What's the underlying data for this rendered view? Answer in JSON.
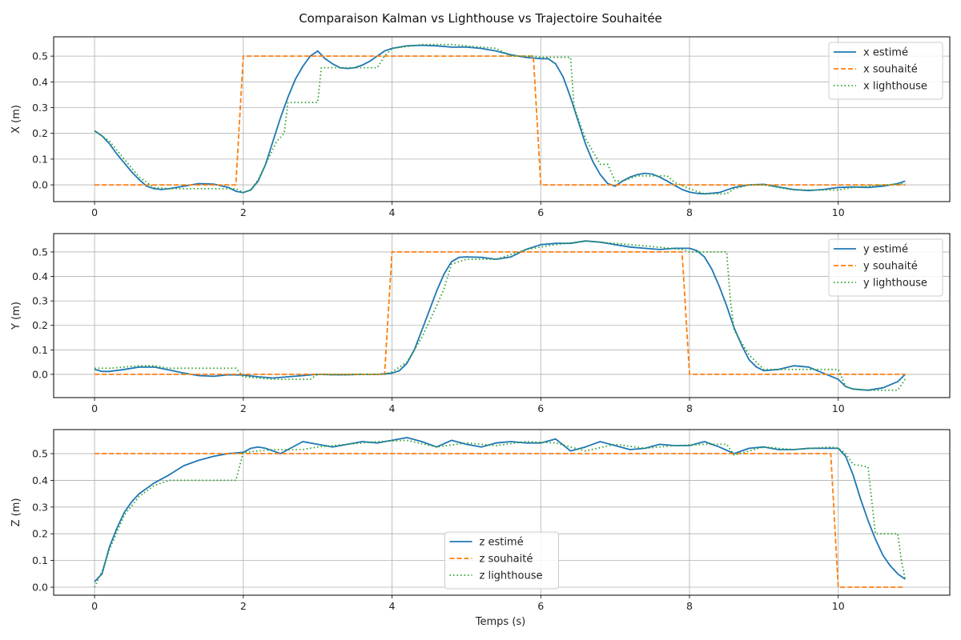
{
  "figure": {
    "title": "Comparaison Kalman vs Lighthouse vs Trajectoire Souhaitée",
    "xlabel": "Temps (s)"
  },
  "colors": {
    "estimated": "#1f77b4",
    "desired": "#ff7f0e",
    "lighthouse": "#2ca02c"
  },
  "chart_data": [
    {
      "type": "line",
      "ylabel": "X (m)",
      "xlim": [
        -0.55,
        11.5
      ],
      "ylim": [
        -0.065,
        0.575
      ],
      "xticks": [
        0,
        2,
        4,
        6,
        8,
        10
      ],
      "yticks": [
        0.0,
        0.1,
        0.2,
        0.3,
        0.4,
        0.5
      ],
      "grid": true,
      "legend_position": "top-right",
      "series": [
        {
          "name": "x estimé",
          "style": "solid",
          "x": [
            0,
            0.1,
            0.2,
            0.3,
            0.4,
            0.5,
            0.6,
            0.7,
            0.8,
            0.9,
            1.0,
            1.2,
            1.4,
            1.6,
            1.8,
            1.9,
            2.0,
            2.1,
            2.2,
            2.3,
            2.4,
            2.5,
            2.6,
            2.7,
            2.8,
            2.9,
            3.0,
            3.1,
            3.2,
            3.3,
            3.4,
            3.5,
            3.6,
            3.7,
            3.8,
            3.9,
            4.0,
            4.2,
            4.4,
            4.6,
            4.8,
            5.0,
            5.2,
            5.4,
            5.6,
            5.8,
            6.0,
            6.1,
            6.2,
            6.3,
            6.4,
            6.5,
            6.6,
            6.7,
            6.8,
            6.9,
            7.0,
            7.1,
            7.2,
            7.3,
            7.4,
            7.5,
            7.6,
            7.7,
            7.8,
            7.9,
            8.0,
            8.1,
            8.2,
            8.4,
            8.6,
            8.8,
            9.0,
            9.2,
            9.4,
            9.6,
            9.8,
            10.0,
            10.2,
            10.4,
            10.6,
            10.8,
            10.9
          ],
          "y": [
            0.21,
            0.19,
            0.16,
            0.12,
            0.085,
            0.05,
            0.02,
            -0.005,
            -0.015,
            -0.018,
            -0.015,
            -0.005,
            0.005,
            0.003,
            -0.01,
            -0.025,
            -0.03,
            -0.02,
            0.015,
            0.08,
            0.17,
            0.26,
            0.34,
            0.41,
            0.46,
            0.5,
            0.52,
            0.49,
            0.47,
            0.455,
            0.452,
            0.455,
            0.465,
            0.48,
            0.5,
            0.52,
            0.53,
            0.54,
            0.542,
            0.54,
            0.535,
            0.535,
            0.53,
            0.52,
            0.505,
            0.495,
            0.49,
            0.49,
            0.47,
            0.42,
            0.34,
            0.25,
            0.16,
            0.09,
            0.04,
            0.005,
            -0.005,
            0.015,
            0.03,
            0.04,
            0.045,
            0.042,
            0.03,
            0.015,
            -0.002,
            -0.018,
            -0.028,
            -0.033,
            -0.035,
            -0.03,
            -0.01,
            0.0,
            0.002,
            -0.008,
            -0.018,
            -0.022,
            -0.018,
            -0.01,
            -0.008,
            -0.01,
            -0.005,
            0.005,
            0.015
          ]
        },
        {
          "name": "x souhaité",
          "style": "dashed",
          "x": [
            0,
            1.9,
            2.0,
            5.9,
            6.0,
            10.9
          ],
          "y": [
            0,
            0,
            0.5,
            0.5,
            0,
            0
          ]
        },
        {
          "name": "x lighthouse",
          "style": "dotted",
          "x": [
            0,
            0.2,
            0.4,
            0.6,
            0.8,
            1.0,
            1.9,
            2.0,
            2.1,
            2.2,
            2.3,
            2.45,
            2.55,
            2.6,
            3.0,
            3.05,
            3.5,
            3.8,
            3.9,
            4.0,
            4.4,
            4.8,
            5.4,
            5.6,
            5.9,
            6.0,
            6.4,
            6.45,
            6.6,
            6.8,
            6.9,
            7.0,
            7.1,
            7.3,
            7.5,
            7.7,
            7.8,
            8.0,
            8.2,
            8.5,
            8.6,
            8.8,
            9.0,
            9.2,
            9.4,
            10.0,
            10.2,
            10.4,
            10.9
          ],
          "y": [
            0.21,
            0.17,
            0.1,
            0.03,
            -0.01,
            -0.015,
            -0.015,
            -0.03,
            -0.02,
            0.02,
            0.08,
            0.17,
            0.2,
            0.32,
            0.32,
            0.455,
            0.455,
            0.455,
            0.5,
            0.53,
            0.545,
            0.545,
            0.53,
            0.5,
            0.5,
            0.495,
            0.495,
            0.3,
            0.18,
            0.08,
            0.08,
            0.015,
            0.015,
            0.035,
            0.035,
            0.035,
            0.01,
            -0.015,
            -0.035,
            -0.035,
            -0.015,
            0.0,
            0.0,
            -0.01,
            -0.02,
            -0.02,
            -0.01,
            -0.005,
            0.005
          ]
        }
      ]
    },
    {
      "type": "line",
      "ylabel": "Y (m)",
      "xlim": [
        -0.55,
        11.5
      ],
      "ylim": [
        -0.095,
        0.575
      ],
      "xticks": [
        0,
        2,
        4,
        6,
        8,
        10
      ],
      "yticks": [
        0.0,
        0.1,
        0.2,
        0.3,
        0.4,
        0.5
      ],
      "grid": true,
      "legend_position": "top-right",
      "series": [
        {
          "name": "y estimé",
          "style": "solid",
          "x": [
            0,
            0.1,
            0.2,
            0.4,
            0.6,
            0.8,
            1.0,
            1.2,
            1.4,
            1.6,
            1.8,
            2.0,
            2.2,
            2.4,
            2.6,
            2.8,
            3.0,
            3.2,
            3.4,
            3.6,
            3.8,
            3.9,
            4.0,
            4.1,
            4.2,
            4.3,
            4.4,
            4.5,
            4.6,
            4.7,
            4.8,
            4.9,
            5.0,
            5.2,
            5.4,
            5.6,
            5.8,
            6.0,
            6.2,
            6.4,
            6.6,
            6.8,
            7.0,
            7.2,
            7.4,
            7.6,
            7.8,
            8.0,
            8.1,
            8.2,
            8.3,
            8.4,
            8.5,
            8.6,
            8.7,
            8.8,
            8.9,
            9.0,
            9.2,
            9.4,
            9.6,
            9.8,
            10.0,
            10.1,
            10.2,
            10.4,
            10.6,
            10.8,
            10.9
          ],
          "y": [
            0.02,
            0.012,
            0.012,
            0.02,
            0.03,
            0.03,
            0.018,
            0.005,
            -0.005,
            -0.008,
            -0.002,
            -0.003,
            -0.01,
            -0.015,
            -0.01,
            -0.005,
            0.0,
            -0.002,
            -0.002,
            0.0,
            0.0,
            0.002,
            0.005,
            0.015,
            0.045,
            0.1,
            0.18,
            0.26,
            0.34,
            0.41,
            0.46,
            0.478,
            0.48,
            0.478,
            0.47,
            0.48,
            0.51,
            0.53,
            0.535,
            0.535,
            0.545,
            0.54,
            0.53,
            0.52,
            0.515,
            0.51,
            0.515,
            0.515,
            0.505,
            0.48,
            0.43,
            0.36,
            0.28,
            0.19,
            0.12,
            0.06,
            0.03,
            0.015,
            0.02,
            0.035,
            0.03,
            0.005,
            -0.02,
            -0.05,
            -0.06,
            -0.065,
            -0.055,
            -0.03,
            0.0
          ]
        },
        {
          "name": "y souhaité",
          "style": "dashed",
          "x": [
            0,
            3.9,
            4.0,
            7.9,
            8.0,
            10.9
          ],
          "y": [
            0,
            0,
            0.5,
            0.5,
            0,
            0
          ]
        },
        {
          "name": "y lighthouse",
          "style": "dotted",
          "x": [
            0,
            0.2,
            0.4,
            0.6,
            0.8,
            1.0,
            1.9,
            2.0,
            2.2,
            2.4,
            2.9,
            3.0,
            3.9,
            4.0,
            4.2,
            4.4,
            4.6,
            4.7,
            4.8,
            5.0,
            5.4,
            5.8,
            6.2,
            6.6,
            7.4,
            7.9,
            8.0,
            8.1,
            8.5,
            8.55,
            8.6,
            8.8,
            9.0,
            9.4,
            10.0,
            10.1,
            10.2,
            10.4,
            10.8,
            10.9
          ],
          "y": [
            0.025,
            0.025,
            0.03,
            0.035,
            0.035,
            0.025,
            0.025,
            -0.01,
            -0.015,
            -0.02,
            -0.02,
            0.0,
            0.0,
            0.01,
            0.05,
            0.15,
            0.28,
            0.35,
            0.45,
            0.47,
            0.47,
            0.51,
            0.53,
            0.545,
            0.525,
            0.51,
            0.5,
            0.5,
            0.5,
            0.3,
            0.18,
            0.08,
            0.02,
            0.02,
            0.02,
            -0.05,
            -0.06,
            -0.065,
            -0.065,
            -0.02
          ]
        }
      ]
    },
    {
      "type": "line",
      "ylabel": "Z (m)",
      "xlim": [
        -0.55,
        11.5
      ],
      "ylim": [
        -0.03,
        0.59
      ],
      "xticks": [
        0,
        2,
        4,
        6,
        8,
        10
      ],
      "yticks": [
        0.0,
        0.1,
        0.2,
        0.3,
        0.4,
        0.5
      ],
      "grid": true,
      "legend_position": "lower-center",
      "series": [
        {
          "name": "z estimé",
          "style": "solid",
          "x": [
            0,
            0.1,
            0.2,
            0.3,
            0.4,
            0.5,
            0.6,
            0.8,
            1.0,
            1.2,
            1.4,
            1.6,
            1.8,
            2.0,
            2.1,
            2.2,
            2.3,
            2.4,
            2.5,
            2.6,
            2.8,
            3.0,
            3.2,
            3.4,
            3.6,
            3.8,
            4.0,
            4.2,
            4.4,
            4.6,
            4.8,
            5.0,
            5.2,
            5.4,
            5.6,
            5.8,
            6.0,
            6.2,
            6.4,
            6.6,
            6.8,
            7.0,
            7.2,
            7.4,
            7.6,
            7.8,
            8.0,
            8.2,
            8.4,
            8.6,
            8.8,
            9.0,
            9.2,
            9.4,
            9.6,
            9.8,
            10.0,
            10.1,
            10.2,
            10.3,
            10.4,
            10.5,
            10.6,
            10.7,
            10.8,
            10.9
          ],
          "y": [
            0.02,
            0.05,
            0.15,
            0.22,
            0.28,
            0.32,
            0.35,
            0.39,
            0.42,
            0.455,
            0.475,
            0.49,
            0.5,
            0.505,
            0.52,
            0.525,
            0.52,
            0.51,
            0.5,
            0.515,
            0.545,
            0.535,
            0.525,
            0.535,
            0.545,
            0.54,
            0.55,
            0.56,
            0.545,
            0.525,
            0.55,
            0.535,
            0.525,
            0.54,
            0.545,
            0.54,
            0.54,
            0.555,
            0.51,
            0.525,
            0.545,
            0.53,
            0.515,
            0.52,
            0.535,
            0.53,
            0.53,
            0.545,
            0.525,
            0.5,
            0.52,
            0.525,
            0.515,
            0.515,
            0.52,
            0.52,
            0.52,
            0.49,
            0.42,
            0.33,
            0.25,
            0.18,
            0.12,
            0.08,
            0.05,
            0.03
          ]
        },
        {
          "name": "z souhaité",
          "style": "dashed",
          "x": [
            0,
            9.9,
            10.0,
            10.9
          ],
          "y": [
            0.5,
            0.5,
            0.0,
            0.0
          ]
        },
        {
          "name": "z lighthouse",
          "style": "dotted",
          "x": [
            0,
            0.1,
            0.2,
            0.4,
            0.6,
            0.8,
            1.0,
            1.9,
            2.0,
            2.4,
            2.8,
            3.0,
            3.4,
            3.8,
            4.2,
            4.6,
            5.0,
            5.4,
            5.8,
            6.2,
            6.6,
            7.0,
            7.4,
            7.8,
            8.2,
            8.5,
            8.6,
            9.0,
            9.4,
            9.9,
            10.0,
            10.1,
            10.2,
            10.4,
            10.5,
            10.6,
            10.8,
            10.85,
            10.9
          ],
          "y": [
            0.0,
            0.06,
            0.14,
            0.27,
            0.34,
            0.38,
            0.4,
            0.4,
            0.505,
            0.515,
            0.515,
            0.525,
            0.535,
            0.545,
            0.55,
            0.525,
            0.54,
            0.53,
            0.545,
            0.54,
            0.51,
            0.535,
            0.52,
            0.53,
            0.535,
            0.535,
            0.495,
            0.525,
            0.515,
            0.525,
            0.52,
            0.5,
            0.46,
            0.45,
            0.2,
            0.2,
            0.2,
            0.1,
            0.03
          ]
        }
      ]
    }
  ]
}
